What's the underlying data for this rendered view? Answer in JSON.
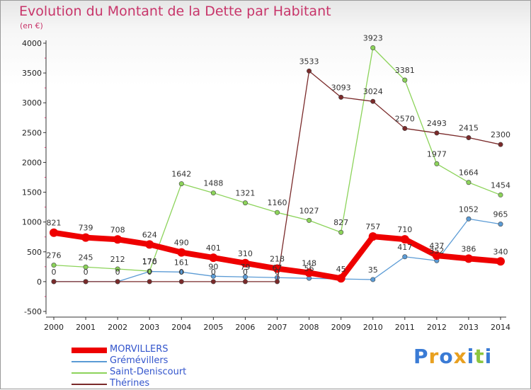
{
  "header": {
    "title": "Evolution du Montant de la Dette par Habitant",
    "unit": "(en €)"
  },
  "chart_data": {
    "type": "line",
    "title": "Evolution du Montant de la Dette par Habitant",
    "subtitle": "(en €)",
    "xlabel": "",
    "ylabel": "",
    "x": [
      "2000",
      "2001",
      "2002",
      "2003",
      "2004",
      "2005",
      "2006",
      "2007",
      "2008",
      "2009",
      "2010",
      "2011",
      "2012",
      "2013",
      "2014"
    ],
    "ylim": [
      -500,
      4000
    ],
    "yticks": [
      -500,
      0,
      500,
      1000,
      1500,
      2000,
      2500,
      3000,
      3500,
      4000
    ],
    "grid": false,
    "legend_position": "bottom-left",
    "series": [
      {
        "name": "MORVILLERS",
        "color": "#ee0000",
        "values": [
          821,
          739,
          708,
          624,
          490,
          401,
          310,
          218,
          148,
          55,
          757,
          710,
          437,
          386,
          340
        ],
        "labels": [
          "821",
          "739",
          "708",
          "624",
          "490",
          "401",
          "310",
          "218",
          "148",
          "",
          "757",
          "710",
          "437",
          "386",
          "340"
        ]
      },
      {
        "name": "Grémévillers",
        "color": "#5b9bd5",
        "values": [
          0,
          0,
          0,
          170,
          161,
          90,
          79,
          67,
          56,
          45,
          35,
          417,
          352,
          1052,
          965
        ],
        "labels": [
          "",
          "",
          "",
          "170",
          "161",
          "90",
          "79",
          "67",
          "56",
          "45",
          "35",
          "417",
          "352",
          "1052",
          "965"
        ]
      },
      {
        "name": "Saint-Deniscourt",
        "color": "#8cd35a",
        "values": [
          276,
          245,
          212,
          176,
          1642,
          1488,
          1321,
          1160,
          1027,
          827,
          3923,
          3381,
          1977,
          1664,
          1454
        ],
        "labels": [
          "276",
          "245",
          "212",
          "176",
          "1642",
          "1488",
          "1321",
          "1160",
          "1027",
          "827",
          "3923",
          "3381",
          "1977",
          "1664",
          "1454"
        ]
      },
      {
        "name": "Thérines",
        "color": "#7a2a2a",
        "values": [
          0,
          0,
          0,
          0,
          0,
          0,
          0,
          0,
          3533,
          3093,
          3024,
          2570,
          2493,
          2415,
          2300
        ],
        "labels": [
          "0",
          "0",
          "0",
          "0",
          "0",
          "0",
          "0",
          "0",
          "3533",
          "3093",
          "3024",
          "2570",
          "2493",
          "2415",
          "2300"
        ]
      }
    ]
  },
  "legend": {
    "items": [
      {
        "label": "MORVILLERS",
        "color": "#ee0000",
        "text_color": "#3355cc"
      },
      {
        "label": "Grémévillers",
        "color": "#5b9bd5",
        "text_color": "#3355cc"
      },
      {
        "label": "Saint-Deniscourt",
        "color": "#8cd35a",
        "text_color": "#3355cc"
      },
      {
        "label": "Thérines",
        "color": "#7a2a2a",
        "text_color": "#3355cc"
      }
    ]
  },
  "logo": {
    "text": "Proxiti",
    "letters": [
      "P",
      "r",
      "o",
      "x",
      "i",
      "t",
      "i"
    ],
    "colors": [
      "#3a7bd5",
      "#e8a020",
      "#3a7bd5",
      "#e8a020",
      "#3a7bd5",
      "#8cc63f",
      "#3a7bd5"
    ]
  }
}
